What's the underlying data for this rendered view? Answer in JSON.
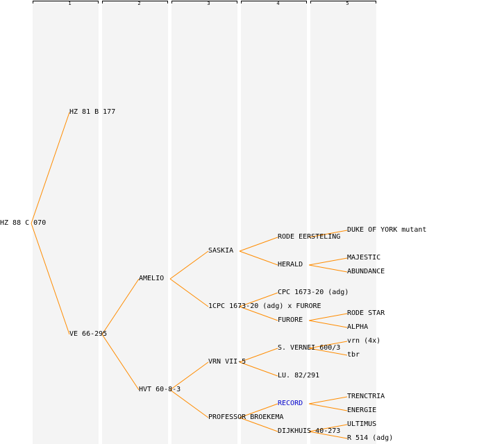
{
  "generations": [
    "1",
    "2",
    "3",
    "4",
    "5"
  ],
  "edge_color": "#ff8c00",
  "link_color": "#0000cc",
  "nodes": {
    "root": "HZ 88 C 070",
    "p1": "HZ 81 B 177",
    "p2": "VE 66-295",
    "g1": "AMELIO",
    "g2": "HVT 60-8-3",
    "gg1": "SASKIA",
    "gg2": "1CPC 1673-20 (adg) x FURORE",
    "gg3": "VRN VII-5",
    "gg4": "PROFESSOR BROEKEMA",
    "ggg1": "RODE EERSTELING",
    "ggg2": "HERALD",
    "ggg3": "CPC 1673-20 (adg)",
    "ggg4": "FURORE",
    "ggg5": "S. VERNEI 600/3",
    "ggg6": "LU. 82/291",
    "ggg7": "RECORD",
    "ggg8": "DIJKHUIS 40-273",
    "h1": "DUKE OF YORK mutant",
    "h2": "MAJESTIC",
    "h3": "ABUNDANCE",
    "h4": "RODE STAR",
    "h5": "ALPHA",
    "h6": "vrn (4x)",
    "h7": "tbr",
    "h8": "TRENCTRIA",
    "h9": "ENERGIE",
    "h10": "ULTIMUS",
    "h11": "R 514 (adg)"
  }
}
